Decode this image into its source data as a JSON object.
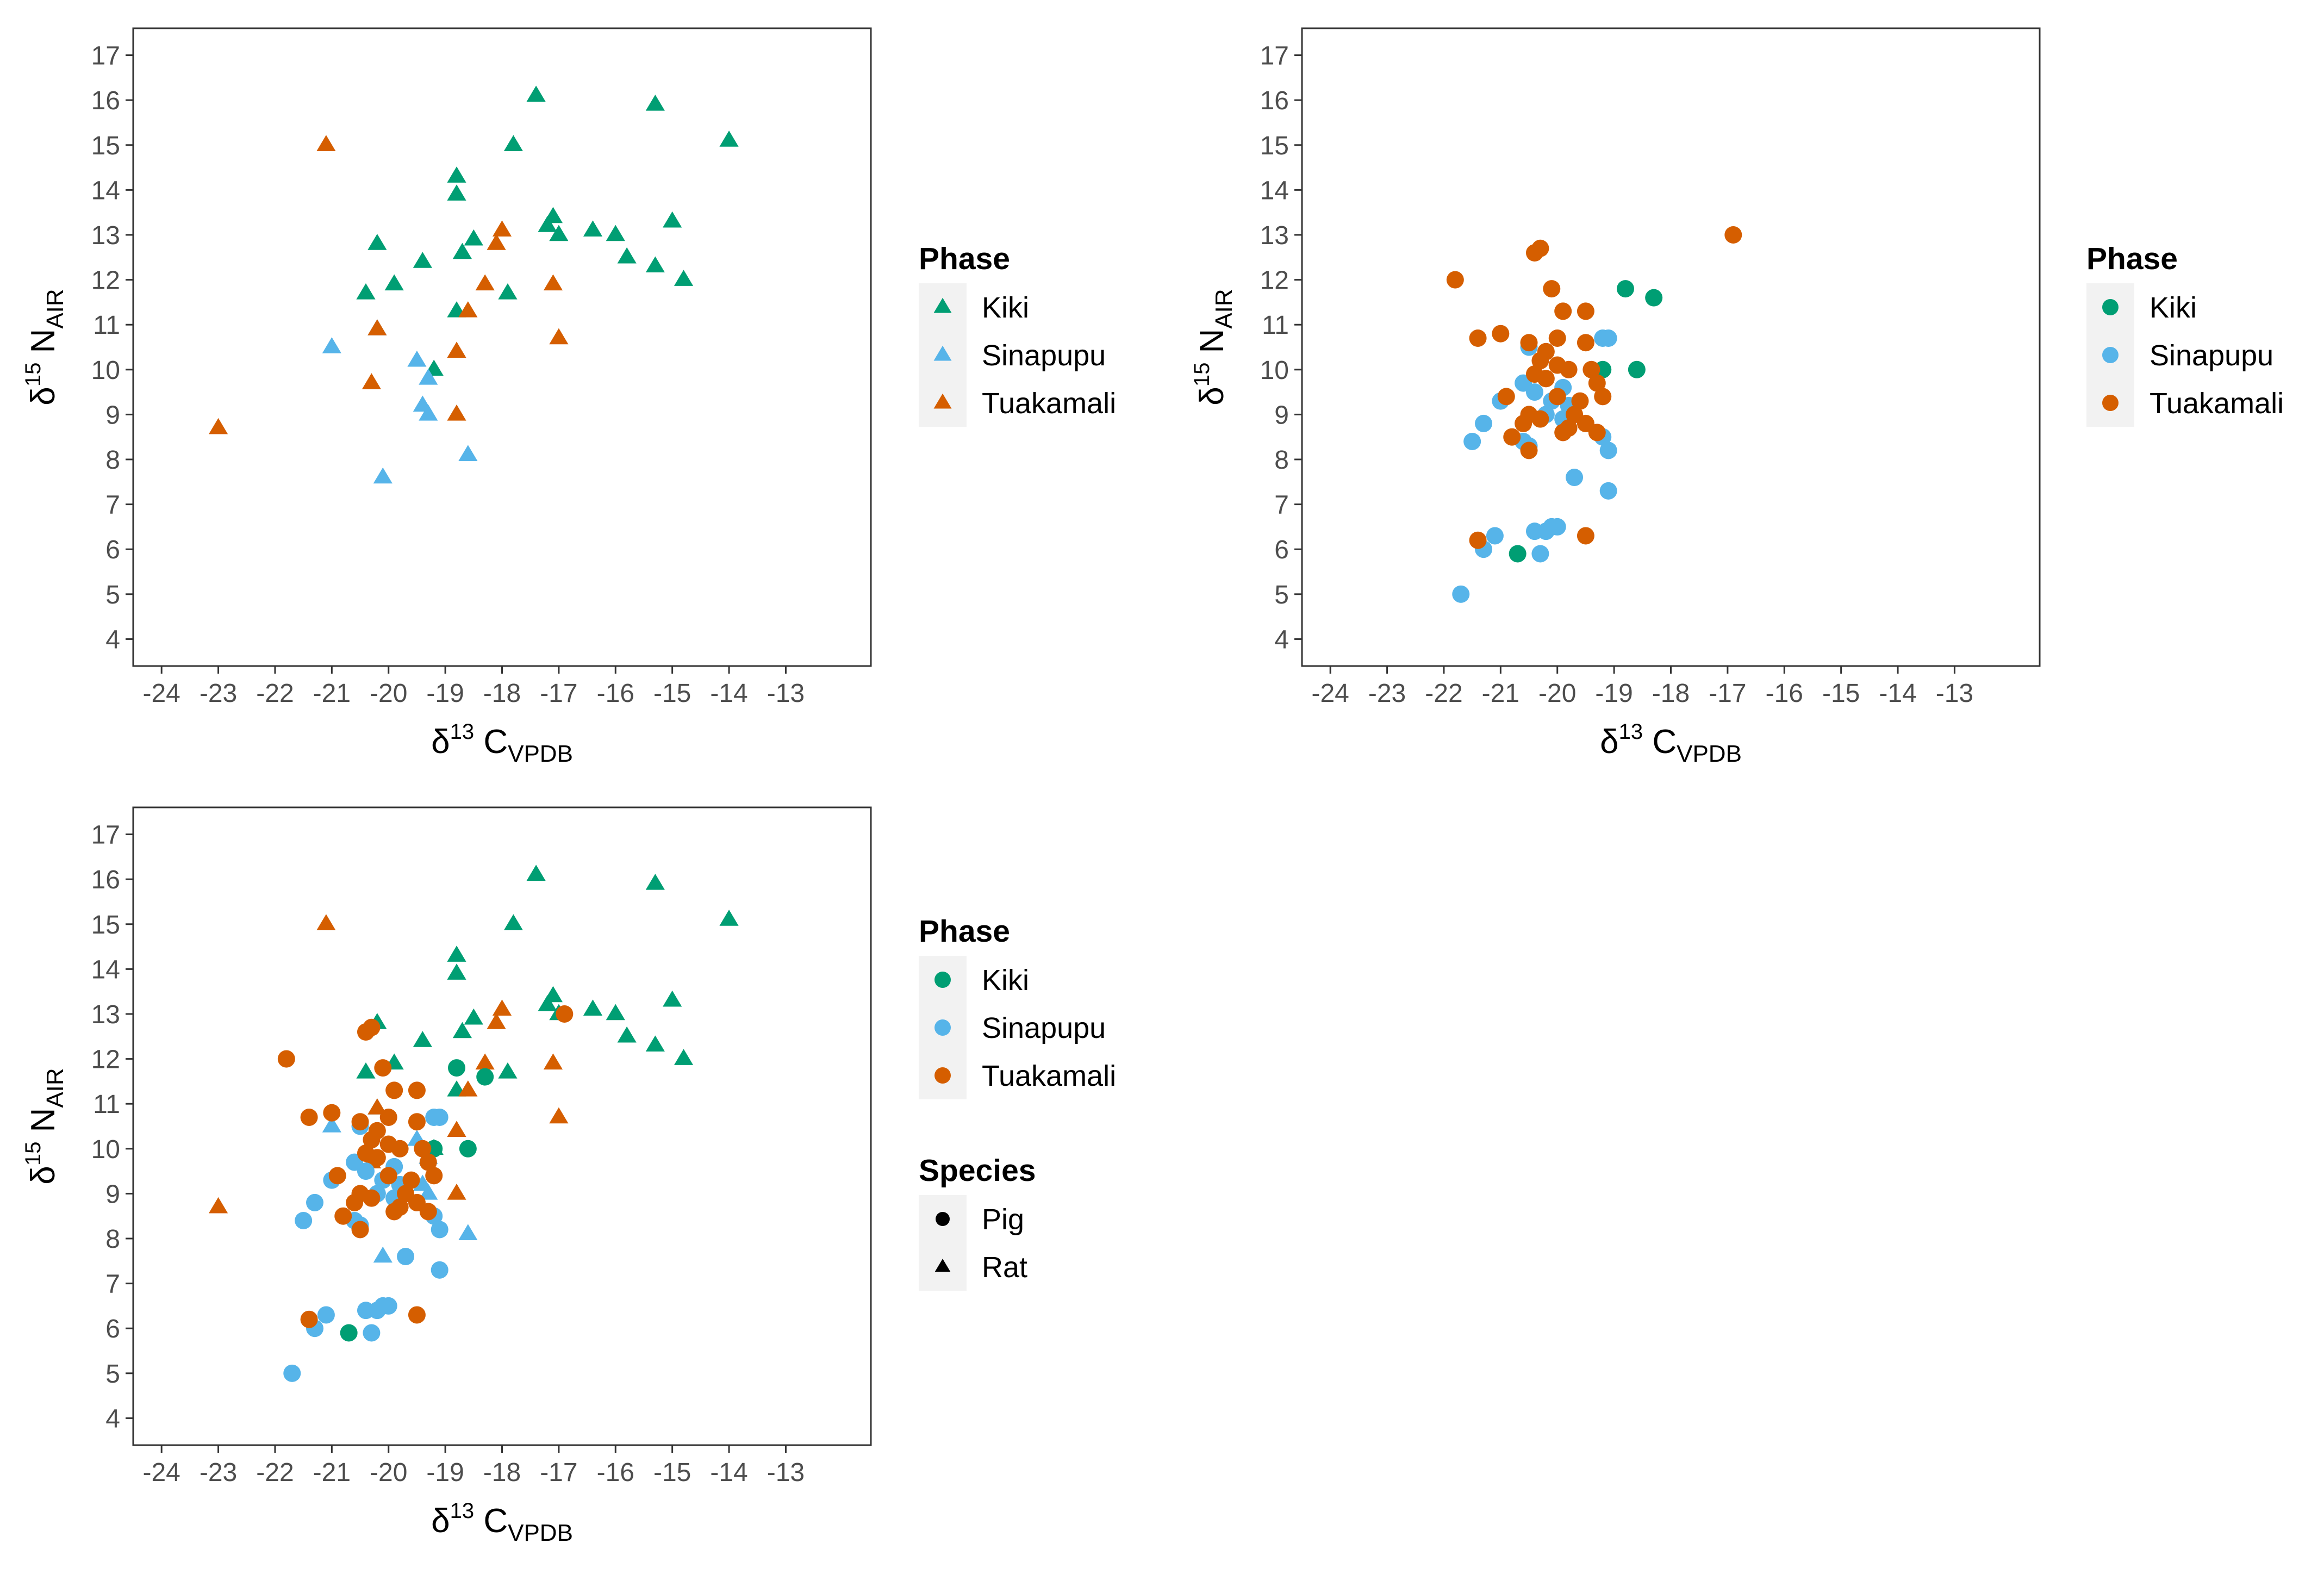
{
  "colors": {
    "Kiki": "#009E73",
    "Sinapupu": "#56B4E9",
    "Tuakamali": "#D55E00",
    "panel_border": "#333333",
    "tick_text": "#4d4d4d",
    "legend_key_bg": "#f2f2f2"
  },
  "axis_titles": {
    "x": {
      "main": "δ",
      "sup": "13",
      "letter": " C",
      "sub": "VPDB"
    },
    "y": {
      "main": "δ",
      "sup": "15",
      "letter": " N",
      "sub": "AIR"
    }
  },
  "legend_titles": {
    "phase": "Phase",
    "species": "Species"
  },
  "legend_labels": {
    "phase": [
      "Kiki",
      "Sinapupu",
      "Tuakamali"
    ],
    "species": [
      "Pig",
      "Rat"
    ]
  },
  "chart_data": [
    {
      "panel": "rat",
      "type": "scatter",
      "xlabel": "δ13 C VPDB",
      "ylabel": "δ15 N AIR",
      "xlim": [
        -24.5,
        -11.5
      ],
      "ylim": [
        3.4,
        17.6
      ],
      "x_ticks": [
        -24,
        -23,
        -22,
        -21,
        -20,
        -19,
        -18,
        -17,
        -16,
        -15,
        -14,
        -13
      ],
      "y_ticks": [
        4,
        5,
        6,
        7,
        8,
        9,
        10,
        11,
        12,
        13,
        14,
        15,
        16,
        17
      ],
      "grid": false,
      "legend": "right",
      "legend_groups": [
        "phase"
      ],
      "legend_shape": "triangle",
      "series": [
        {
          "name": "Kiki",
          "shape": "triangle",
          "points": [
            [
              -17.4,
              16.1
            ],
            [
              -15.3,
              15.9
            ],
            [
              -17.8,
              15.0
            ],
            [
              -14.0,
              15.1
            ],
            [
              -18.8,
              14.3
            ],
            [
              -18.8,
              13.9
            ],
            [
              -17.1,
              13.4
            ],
            [
              -17.2,
              13.2
            ],
            [
              -17.0,
              13.0
            ],
            [
              -16.4,
              13.1
            ],
            [
              -16.0,
              13.0
            ],
            [
              -15.0,
              13.3
            ],
            [
              -20.2,
              12.8
            ],
            [
              -18.5,
              12.9
            ],
            [
              -18.7,
              12.6
            ],
            [
              -19.4,
              12.4
            ],
            [
              -15.8,
              12.5
            ],
            [
              -15.3,
              12.3
            ],
            [
              -14.8,
              12.0
            ],
            [
              -19.9,
              11.9
            ],
            [
              -20.4,
              11.7
            ],
            [
              -17.9,
              11.7
            ],
            [
              -18.8,
              11.3
            ],
            [
              -19.2,
              10.0
            ]
          ]
        },
        {
          "name": "Sinapupu",
          "shape": "triangle",
          "points": [
            [
              -21.0,
              10.5
            ],
            [
              -20.2,
              10.9
            ],
            [
              -19.5,
              10.2
            ],
            [
              -19.3,
              9.8
            ],
            [
              -19.4,
              9.2
            ],
            [
              -19.3,
              9.0
            ],
            [
              -18.6,
              8.1
            ],
            [
              -20.1,
              7.6
            ]
          ]
        },
        {
          "name": "Tuakamali",
          "shape": "triangle",
          "points": [
            [
              -21.1,
              15.0
            ],
            [
              -18.0,
              13.1
            ],
            [
              -18.1,
              12.8
            ],
            [
              -18.3,
              11.9
            ],
            [
              -17.1,
              11.9
            ],
            [
              -18.6,
              11.3
            ],
            [
              -20.2,
              10.9
            ],
            [
              -17.0,
              10.7
            ],
            [
              -18.8,
              10.4
            ],
            [
              -20.3,
              9.7
            ],
            [
              -18.8,
              9.0
            ],
            [
              -23.0,
              8.7
            ]
          ]
        }
      ]
    },
    {
      "panel": "pig",
      "type": "scatter",
      "xlabel": "δ13 C VPDB",
      "ylabel": "δ15 N AIR",
      "xlim": [
        -24.5,
        -11.5
      ],
      "ylim": [
        3.4,
        17.6
      ],
      "x_ticks": [
        -24,
        -23,
        -22,
        -21,
        -20,
        -19,
        -18,
        -17,
        -16,
        -15,
        -14,
        -13
      ],
      "y_ticks": [
        4,
        5,
        6,
        7,
        8,
        9,
        10,
        11,
        12,
        13,
        14,
        15,
        16,
        17
      ],
      "grid": false,
      "legend": "right",
      "legend_groups": [
        "phase"
      ],
      "legend_shape": "circle",
      "series": [
        {
          "name": "Kiki",
          "shape": "circle",
          "points": [
            [
              -18.8,
              11.8
            ],
            [
              -18.3,
              11.6
            ],
            [
              -19.2,
              10.0
            ],
            [
              -18.6,
              10.0
            ],
            [
              -20.7,
              5.9
            ]
          ]
        },
        {
          "name": "Sinapupu",
          "shape": "circle",
          "points": [
            [
              -20.5,
              10.5
            ],
            [
              -19.2,
              10.7
            ],
            [
              -19.1,
              10.7
            ],
            [
              -20.6,
              9.7
            ],
            [
              -20.4,
              9.5
            ],
            [
              -19.9,
              9.6
            ],
            [
              -20.1,
              9.3
            ],
            [
              -19.8,
              9.2
            ],
            [
              -21.0,
              9.3
            ],
            [
              -20.2,
              9.0
            ],
            [
              -19.9,
              8.9
            ],
            [
              -21.3,
              8.8
            ],
            [
              -21.5,
              8.4
            ],
            [
              -20.6,
              8.4
            ],
            [
              -20.5,
              8.3
            ],
            [
              -19.2,
              8.5
            ],
            [
              -19.1,
              8.2
            ],
            [
              -19.7,
              7.6
            ],
            [
              -19.1,
              7.3
            ],
            [
              -21.1,
              6.3
            ],
            [
              -20.4,
              6.4
            ],
            [
              -20.2,
              6.4
            ],
            [
              -20.1,
              6.5
            ],
            [
              -20.0,
              6.5
            ],
            [
              -21.3,
              6.0
            ],
            [
              -20.3,
              5.9
            ],
            [
              -21.7,
              5.0
            ]
          ]
        },
        {
          "name": "Tuakamali",
          "shape": "circle",
          "points": [
            [
              -16.9,
              13.0
            ],
            [
              -20.3,
              12.7
            ],
            [
              -20.4,
              12.6
            ],
            [
              -21.8,
              12.0
            ],
            [
              -20.1,
              11.8
            ],
            [
              -19.9,
              11.3
            ],
            [
              -19.5,
              11.3
            ],
            [
              -21.0,
              10.8
            ],
            [
              -21.4,
              10.7
            ],
            [
              -20.5,
              10.6
            ],
            [
              -20.0,
              10.7
            ],
            [
              -19.5,
              10.6
            ],
            [
              -20.2,
              10.4
            ],
            [
              -20.3,
              10.2
            ],
            [
              -20.0,
              10.1
            ],
            [
              -19.8,
              10.0
            ],
            [
              -19.4,
              10.0
            ],
            [
              -20.4,
              9.9
            ],
            [
              -20.2,
              9.8
            ],
            [
              -19.3,
              9.7
            ],
            [
              -19.2,
              9.4
            ],
            [
              -20.0,
              9.4
            ],
            [
              -19.6,
              9.3
            ],
            [
              -20.9,
              9.4
            ],
            [
              -19.7,
              9.0
            ],
            [
              -20.5,
              9.0
            ],
            [
              -20.3,
              8.9
            ],
            [
              -20.6,
              8.8
            ],
            [
              -19.8,
              8.7
            ],
            [
              -19.5,
              8.8
            ],
            [
              -19.9,
              8.6
            ],
            [
              -19.3,
              8.6
            ],
            [
              -20.5,
              8.2
            ],
            [
              -20.8,
              8.5
            ],
            [
              -21.4,
              6.2
            ],
            [
              -19.5,
              6.3
            ]
          ]
        }
      ]
    },
    {
      "panel": "combined",
      "type": "scatter",
      "xlabel": "δ13 C VPDB",
      "ylabel": "δ15 N AIR",
      "xlim": [
        -24.5,
        -11.5
      ],
      "ylim": [
        3.4,
        17.6
      ],
      "x_ticks": [
        -24,
        -23,
        -22,
        -21,
        -20,
        -19,
        -18,
        -17,
        -16,
        -15,
        -14,
        -13
      ],
      "y_ticks": [
        4,
        5,
        6,
        7,
        8,
        9,
        10,
        11,
        12,
        13,
        14,
        15,
        16,
        17
      ],
      "grid": false,
      "legend": "right",
      "legend_groups": [
        "phase",
        "species"
      ],
      "legend_shape": "circle",
      "series": [
        {
          "name": "Kiki",
          "shape": "triangle",
          "points": [
            [
              -17.4,
              16.1
            ],
            [
              -15.3,
              15.9
            ],
            [
              -17.8,
              15.0
            ],
            [
              -14.0,
              15.1
            ],
            [
              -18.8,
              14.3
            ],
            [
              -18.8,
              13.9
            ],
            [
              -17.1,
              13.4
            ],
            [
              -17.2,
              13.2
            ],
            [
              -17.0,
              13.0
            ],
            [
              -16.4,
              13.1
            ],
            [
              -16.0,
              13.0
            ],
            [
              -15.0,
              13.3
            ],
            [
              -20.2,
              12.8
            ],
            [
              -18.5,
              12.9
            ],
            [
              -18.7,
              12.6
            ],
            [
              -19.4,
              12.4
            ],
            [
              -15.8,
              12.5
            ],
            [
              -15.3,
              12.3
            ],
            [
              -14.8,
              12.0
            ],
            [
              -19.9,
              11.9
            ],
            [
              -20.4,
              11.7
            ],
            [
              -17.9,
              11.7
            ],
            [
              -18.8,
              11.3
            ],
            [
              -19.2,
              10.0
            ]
          ]
        },
        {
          "name": "Sinapupu",
          "shape": "triangle",
          "points": [
            [
              -21.0,
              10.5
            ],
            [
              -20.2,
              10.9
            ],
            [
              -19.5,
              10.2
            ],
            [
              -19.3,
              9.8
            ],
            [
              -19.4,
              9.2
            ],
            [
              -19.3,
              9.0
            ],
            [
              -18.6,
              8.1
            ],
            [
              -20.1,
              7.6
            ]
          ]
        },
        {
          "name": "Tuakamali",
          "shape": "triangle",
          "points": [
            [
              -21.1,
              15.0
            ],
            [
              -18.0,
              13.1
            ],
            [
              -18.1,
              12.8
            ],
            [
              -18.3,
              11.9
            ],
            [
              -17.1,
              11.9
            ],
            [
              -18.6,
              11.3
            ],
            [
              -20.2,
              10.9
            ],
            [
              -17.0,
              10.7
            ],
            [
              -18.8,
              10.4
            ],
            [
              -20.3,
              9.7
            ],
            [
              -18.8,
              9.0
            ],
            [
              -23.0,
              8.7
            ]
          ]
        },
        {
          "name": "Kiki",
          "shape": "circle",
          "points": [
            [
              -18.8,
              11.8
            ],
            [
              -18.3,
              11.6
            ],
            [
              -19.2,
              10.0
            ],
            [
              -18.6,
              10.0
            ],
            [
              -20.7,
              5.9
            ]
          ]
        },
        {
          "name": "Sinapupu",
          "shape": "circle",
          "points": [
            [
              -20.5,
              10.5
            ],
            [
              -19.2,
              10.7
            ],
            [
              -19.1,
              10.7
            ],
            [
              -20.6,
              9.7
            ],
            [
              -20.4,
              9.5
            ],
            [
              -19.9,
              9.6
            ],
            [
              -20.1,
              9.3
            ],
            [
              -19.8,
              9.2
            ],
            [
              -21.0,
              9.3
            ],
            [
              -20.2,
              9.0
            ],
            [
              -19.9,
              8.9
            ],
            [
              -21.3,
              8.8
            ],
            [
              -21.5,
              8.4
            ],
            [
              -20.6,
              8.4
            ],
            [
              -20.5,
              8.3
            ],
            [
              -19.2,
              8.5
            ],
            [
              -19.1,
              8.2
            ],
            [
              -19.7,
              7.6
            ],
            [
              -19.1,
              7.3
            ],
            [
              -21.1,
              6.3
            ],
            [
              -20.4,
              6.4
            ],
            [
              -20.2,
              6.4
            ],
            [
              -20.1,
              6.5
            ],
            [
              -20.0,
              6.5
            ],
            [
              -21.3,
              6.0
            ],
            [
              -20.3,
              5.9
            ],
            [
              -21.7,
              5.0
            ]
          ]
        },
        {
          "name": "Tuakamali",
          "shape": "circle",
          "points": [
            [
              -16.9,
              13.0
            ],
            [
              -20.3,
              12.7
            ],
            [
              -20.4,
              12.6
            ],
            [
              -21.8,
              12.0
            ],
            [
              -20.1,
              11.8
            ],
            [
              -19.9,
              11.3
            ],
            [
              -19.5,
              11.3
            ],
            [
              -21.0,
              10.8
            ],
            [
              -21.4,
              10.7
            ],
            [
              -20.5,
              10.6
            ],
            [
              -20.0,
              10.7
            ],
            [
              -19.5,
              10.6
            ],
            [
              -20.2,
              10.4
            ],
            [
              -20.3,
              10.2
            ],
            [
              -20.0,
              10.1
            ],
            [
              -19.8,
              10.0
            ],
            [
              -19.4,
              10.0
            ],
            [
              -20.4,
              9.9
            ],
            [
              -20.2,
              9.8
            ],
            [
              -19.3,
              9.7
            ],
            [
              -19.2,
              9.4
            ],
            [
              -20.0,
              9.4
            ],
            [
              -19.6,
              9.3
            ],
            [
              -20.9,
              9.4
            ],
            [
              -19.7,
              9.0
            ],
            [
              -20.5,
              9.0
            ],
            [
              -20.3,
              8.9
            ],
            [
              -20.6,
              8.8
            ],
            [
              -19.8,
              8.7
            ],
            [
              -19.5,
              8.8
            ],
            [
              -19.9,
              8.6
            ],
            [
              -19.3,
              8.6
            ],
            [
              -20.5,
              8.2
            ],
            [
              -20.8,
              8.5
            ],
            [
              -21.4,
              6.2
            ],
            [
              -19.5,
              6.3
            ]
          ]
        }
      ]
    }
  ]
}
